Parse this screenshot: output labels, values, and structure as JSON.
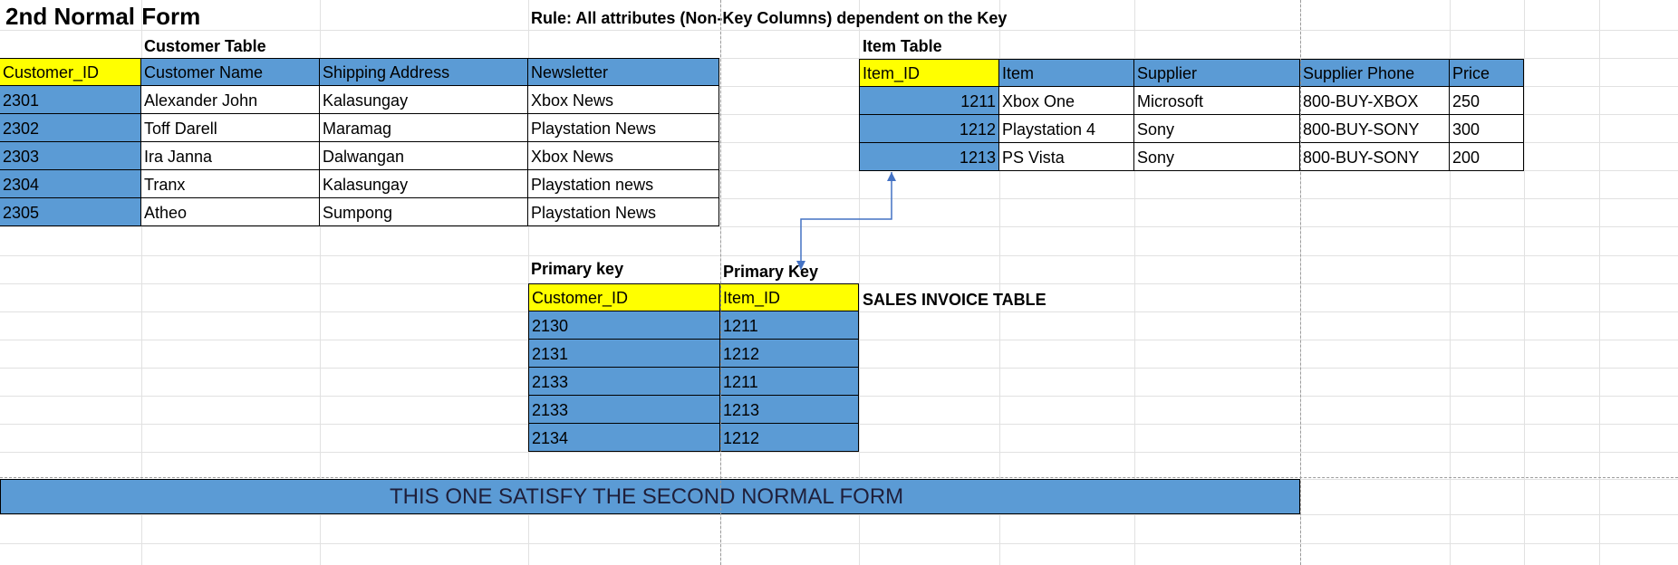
{
  "title": "2nd Normal Form",
  "rule": "Rule: All attributes (Non-Key Columns) dependent on the Key",
  "customer_table": {
    "title": "Customer Table",
    "headers": [
      "Customer_ID",
      "Customer Name",
      "Shipping Address",
      "Newsletter"
    ],
    "rows": [
      [
        "2301",
        "Alexander John",
        "Kalasungay",
        "Xbox News"
      ],
      [
        "2302",
        "Toff Darell",
        "Maramag",
        "Playstation News"
      ],
      [
        "2303",
        "Ira Janna",
        "Dalwangan",
        "Xbox News"
      ],
      [
        "2304",
        "Tranx",
        "Kalasungay",
        "Playstation news"
      ],
      [
        "2305",
        "Atheo",
        "Sumpong",
        "Playstation News"
      ]
    ]
  },
  "item_table": {
    "title": "Item Table",
    "headers": [
      "Item_ID",
      "Item",
      "Supplier",
      "Supplier Phone",
      "Price"
    ],
    "rows": [
      [
        "1211",
        "Xbox One",
        "Microsoft",
        "800-BUY-XBOX",
        "250"
      ],
      [
        "1212",
        "Playstation 4",
        "Sony",
        "800-BUY-SONY",
        "300"
      ],
      [
        "1213",
        "PS Vista",
        "Sony",
        "800-BUY-SONY",
        "200"
      ]
    ]
  },
  "sales_invoice_table": {
    "title": "SALES INVOICE TABLE",
    "key_labels": [
      "Primary key",
      "Primary Key"
    ],
    "headers": [
      "Customer_ID",
      "Item_ID"
    ],
    "rows": [
      [
        "2130",
        "1211"
      ],
      [
        "2131",
        "1212"
      ],
      [
        "2133",
        "1211"
      ],
      [
        "2133",
        "1213"
      ],
      [
        "2134",
        "1212"
      ]
    ]
  },
  "banner": "THIS ONE SATISFY THE SECOND NORMAL FORM",
  "colors": {
    "key_header": "#ffff00",
    "cell_fill": "#5b9bd5",
    "connector": "#4472c4"
  }
}
